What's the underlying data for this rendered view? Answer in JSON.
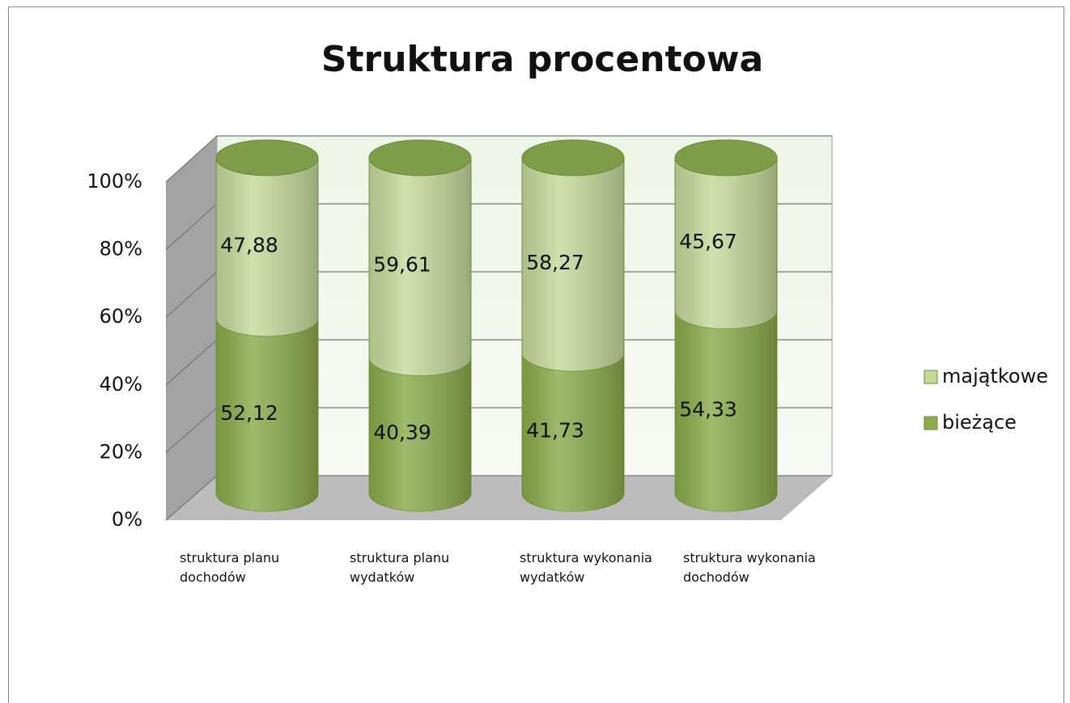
{
  "chart_data": {
    "type": "bar3d_stacked",
    "title": "Struktura procentowa",
    "categories": [
      "struktura planu dochodów",
      "struktura planu wydatków",
      "struktura wykonania wydatków",
      "struktura wykonania dochodów"
    ],
    "series": [
      {
        "name": "bieżące",
        "color": "#8bab4c",
        "values": [
          52.12,
          40.39,
          41.73,
          54.33
        ],
        "value_labels": [
          "52,12",
          "40,39",
          "41,73",
          "54,33"
        ]
      },
      {
        "name": "majątkowe",
        "color": "#c6da9c",
        "values": [
          47.88,
          59.61,
          58.27,
          45.67
        ],
        "value_labels": [
          "47,88",
          "59,61",
          "58,27",
          "45,67"
        ]
      }
    ],
    "ylim": [
      0,
      100
    ],
    "yticks": [
      {
        "value": 0,
        "label": "0%"
      },
      {
        "value": 20,
        "label": "20%"
      },
      {
        "value": 40,
        "label": "40%"
      },
      {
        "value": 60,
        "label": "60%"
      },
      {
        "value": 80,
        "label": "80%"
      },
      {
        "value": 100,
        "label": "100%"
      }
    ],
    "grid": true,
    "legend": "right"
  }
}
